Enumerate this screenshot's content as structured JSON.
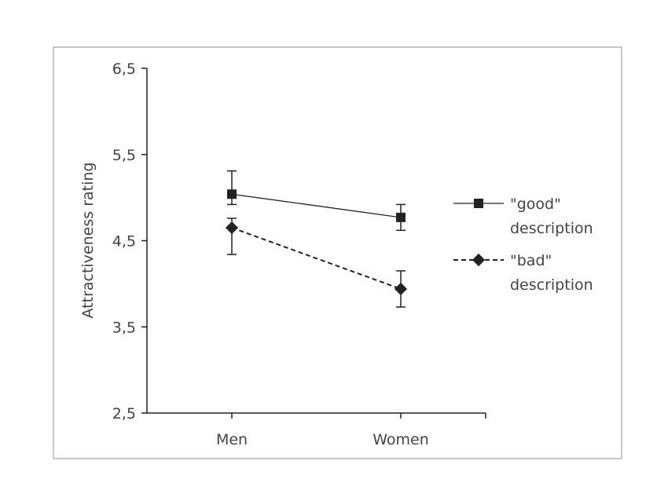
{
  "chart_data": {
    "type": "line",
    "title": "",
    "xlabel": "",
    "ylabel": "Attractiveness  rating",
    "categories": [
      "Men",
      "Women"
    ],
    "ylim": [
      2.5,
      6.5
    ],
    "yticks": [
      {
        "value": 2.5,
        "label": "2,5"
      },
      {
        "value": 3.5,
        "label": "3,5"
      },
      {
        "value": 4.5,
        "label": "4,5"
      },
      {
        "value": 5.5,
        "label": "5,5"
      },
      {
        "value": 6.5,
        "label": "6,5"
      }
    ],
    "grid": false,
    "legend_position": "right",
    "series": [
      {
        "name_lines": [
          "\"good\"",
          "description"
        ],
        "marker": "square",
        "line_style": "solid",
        "values": [
          5.04,
          4.77
        ],
        "error_low": [
          4.92,
          4.62
        ],
        "error_high": [
          5.31,
          4.92
        ]
      },
      {
        "name_lines": [
          "\"bad\"",
          "description"
        ],
        "marker": "diamond",
        "line_style": "dashed",
        "values": [
          4.65,
          3.94
        ],
        "error_low": [
          4.34,
          3.73
        ],
        "error_high": [
          4.76,
          4.15
        ]
      }
    ],
    "colors": {
      "line": "#222222",
      "axis": "#222222",
      "text": "#444444",
      "frame": "#c8c8c8"
    }
  }
}
